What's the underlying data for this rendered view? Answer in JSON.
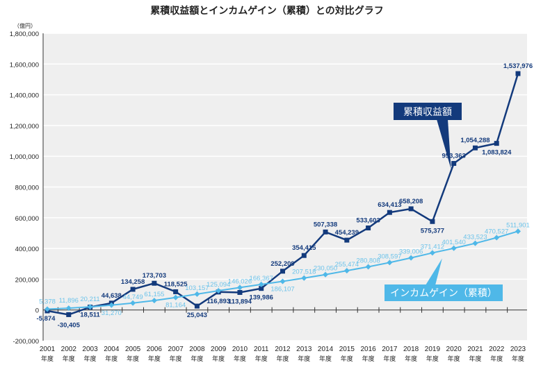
{
  "chart_data": {
    "type": "line",
    "title": "累積収益額とインカムゲイン（累積）との対比グラフ",
    "unit": "（億円）",
    "categories": [
      "2001",
      "2002",
      "2003",
      "2004",
      "2005",
      "2006",
      "2007",
      "2008",
      "2009",
      "2010",
      "2011",
      "2012",
      "2013",
      "2014",
      "2015",
      "2016",
      "2017",
      "2018",
      "2019",
      "2020",
      "2021",
      "2022",
      "2023"
    ],
    "category_suffix": "年度",
    "ylim": [
      -200000,
      1800000
    ],
    "yticks": [
      -200000,
      0,
      200000,
      400000,
      600000,
      800000,
      1000000,
      1200000,
      1400000,
      1600000,
      1800000
    ],
    "ytick_labels": [
      "-200,000",
      "0",
      "200,000",
      "400,000",
      "600,000",
      "800,000",
      "1,000,000",
      "1,200,000",
      "1,400,000",
      "1,600,000",
      "1,800,000"
    ],
    "grid": true,
    "series": [
      {
        "name": "累積収益額",
        "color": "#133a7c",
        "marker": "square",
        "values": [
          -5874,
          -30405,
          18511,
          44638,
          134258,
          173703,
          118525,
          25043,
          116893,
          113894,
          139986,
          252209,
          354415,
          507338,
          454239,
          533603,
          634413,
          658208,
          575377,
          953363,
          1054288,
          1083824,
          1537976
        ],
        "labels": [
          "-5,874",
          "-30,405",
          "18,511",
          "44,638",
          "134,258",
          "173,703",
          "118,525",
          "25,043",
          "116,893",
          "113,894",
          "139,986",
          "252,209",
          "354,415",
          "507,338",
          "454,239",
          "533,603",
          "634,413",
          "658,208",
          "575,377",
          "953,363",
          "1,054,288",
          "1,083,824",
          "1,537,976"
        ]
      },
      {
        "name": "インカムゲイン（累積）",
        "color": "#4fb8e8",
        "marker": "diamond",
        "values": [
          5378,
          11896,
          20211,
          31270,
          44749,
          61155,
          81164,
          103157,
          125094,
          146026,
          166367,
          186107,
          207518,
          230050,
          255474,
          280808,
          308597,
          339006,
          371412,
          401540,
          433523,
          470527,
          511901
        ],
        "labels": [
          "5,378",
          "11,896",
          "20,211",
          "31,270",
          "44,749",
          "61,155",
          "81,164",
          "103,157",
          "125,094",
          "146,026",
          "166,367",
          "186,107",
          "207,518",
          "230,050",
          "255,474",
          "280,808",
          "308,597",
          "339,006",
          "371,412",
          "401,540",
          "433,523",
          "470,527",
          "511,901"
        ]
      }
    ]
  }
}
